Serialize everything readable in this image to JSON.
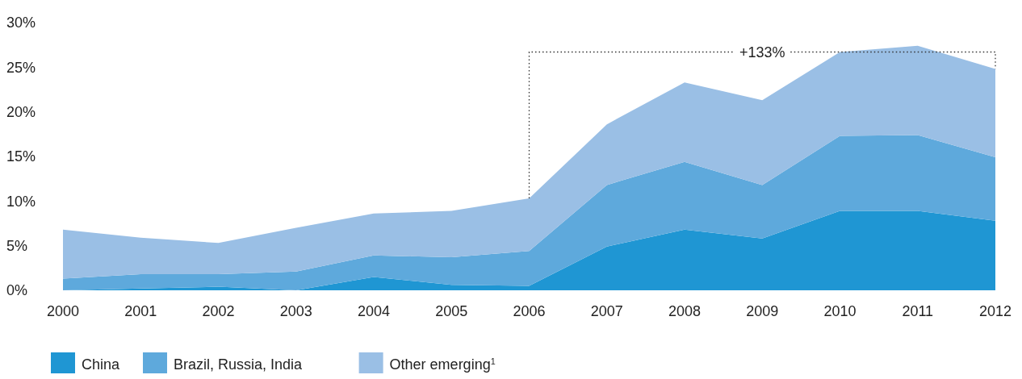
{
  "chart_data": {
    "type": "area",
    "stacked": true,
    "categories": [
      "2000",
      "2001",
      "2002",
      "2003",
      "2004",
      "2005",
      "2006",
      "2007",
      "2008",
      "2009",
      "2010",
      "2011",
      "2012"
    ],
    "series": [
      {
        "name": "China",
        "color": "#1f96d3",
        "values": [
          0,
          0.2,
          0.4,
          0,
          1.5,
          0.6,
          0.5,
          4.9,
          6.8,
          5.8,
          8.9,
          8.9,
          7.8
        ]
      },
      {
        "name": "Brazil, Russia, India",
        "color": "#5ea9dc",
        "values": [
          1.3,
          1.6,
          1.4,
          2.1,
          2.4,
          3.1,
          3.9,
          6.9,
          7.6,
          6.0,
          8.4,
          8.5,
          7.1
        ]
      },
      {
        "name": "Other emerging$^{1}$",
        "color": "#9abfe5",
        "values": [
          5.5,
          4.1,
          3.5,
          4.9,
          4.7,
          5.2,
          5.9,
          6.8,
          8.9,
          9.5,
          9.4,
          10.0,
          9.9
        ]
      }
    ],
    "ylim": [
      0,
      30
    ],
    "yticks": [
      {
        "value": 0,
        "label": "0%"
      },
      {
        "value": 5,
        "label": "5%"
      },
      {
        "value": 10,
        "label": "10%"
      },
      {
        "value": 15,
        "label": "15%"
      },
      {
        "value": 20,
        "label": "20%"
      },
      {
        "value": 25,
        "label": "25%"
      },
      {
        "value": 30,
        "label": "30%"
      }
    ],
    "annotations": [
      {
        "text": "+133%",
        "x": "2012",
        "y": 24.8
      }
    ],
    "grid": false,
    "legend": "bottom left"
  }
}
